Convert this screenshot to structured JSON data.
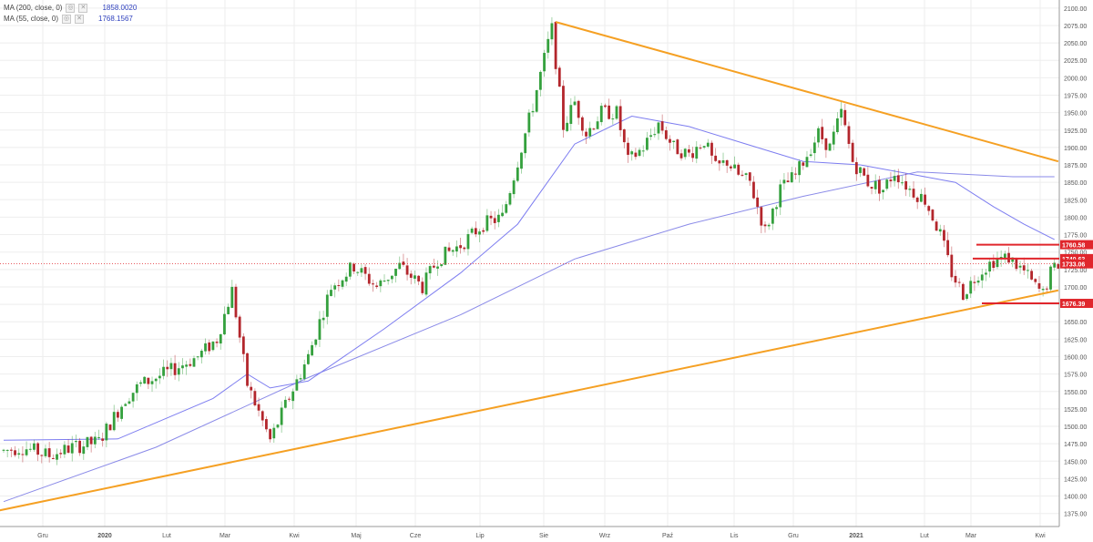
{
  "legend": [
    {
      "label": "MA (200, close, 0)",
      "value": "1858.0020"
    },
    {
      "label": "MA (55, close, 0)",
      "value": "1768.1567"
    }
  ],
  "price_tags": [
    {
      "text": "1760.58",
      "color": "#e0262c"
    },
    {
      "text": "1740.63",
      "color": "#e0262c"
    },
    {
      "text": "1733.06",
      "color": "#e0262c"
    },
    {
      "text": "1676.39",
      "color": "#e0262c"
    }
  ],
  "colors": {
    "bull": "#34a03d",
    "bear": "#b3262c",
    "ma55": "#7d7df0",
    "ma200": "#8a8ae8",
    "trend": "#f5a023",
    "level": "#e0262c",
    "grid": "#eeeeee"
  },
  "chart_data": {
    "type": "candlestick",
    "y_range": [
      1355,
      2105
    ],
    "y_ticks": [
      "1375.00",
      "1400.00",
      "1425.00",
      "1450.00",
      "1475.00",
      "1500.00",
      "1525.00",
      "1550.00",
      "1575.00",
      "1600.00",
      "1625.00",
      "1650.00",
      "1675.00",
      "1700.00",
      "1725.00",
      "1750.00",
      "1775.00",
      "1800.00",
      "1825.00",
      "1850.00",
      "1875.00",
      "1900.00",
      "1925.00",
      "1950.00",
      "1975.00",
      "2000.00",
      "2025.00",
      "2050.00",
      "2075.00",
      "2100.00"
    ],
    "x_ticks": [
      "Gru",
      "2020",
      "Lut",
      "Mar",
      "Kwi",
      "Maj",
      "Cze",
      "Lip",
      "Sie",
      "Wrz",
      "Paź",
      "Lis",
      "Gru",
      "2021",
      "Lut",
      "Mar",
      "Kwi"
    ],
    "levels": [
      1760.58,
      1740.63,
      1733.06,
      1676.39
    ],
    "last_price": 1733.06,
    "anchors": [
      [
        0,
        1465
      ],
      [
        5,
        1470
      ],
      [
        12,
        1458
      ],
      [
        18,
        1470
      ],
      [
        25,
        1478
      ],
      [
        32,
        1540
      ],
      [
        36,
        1560
      ],
      [
        44,
        1580
      ],
      [
        51,
        1600
      ],
      [
        56,
        1625
      ],
      [
        60,
        1695
      ],
      [
        64,
        1560
      ],
      [
        70,
        1480
      ],
      [
        74,
        1530
      ],
      [
        80,
        1600
      ],
      [
        86,
        1700
      ],
      [
        92,
        1730
      ],
      [
        98,
        1700
      ],
      [
        104,
        1730
      ],
      [
        110,
        1700
      ],
      [
        114,
        1740
      ],
      [
        120,
        1760
      ],
      [
        126,
        1790
      ],
      [
        131,
        1800
      ],
      [
        135,
        1880
      ],
      [
        139,
        1960
      ],
      [
        143,
        2050
      ],
      [
        144,
        2070
      ],
      [
        147,
        1930
      ],
      [
        150,
        1965
      ],
      [
        153,
        1920
      ],
      [
        157,
        1950
      ],
      [
        161,
        1950
      ],
      [
        164,
        1880
      ],
      [
        168,
        1900
      ],
      [
        172,
        1935
      ],
      [
        176,
        1900
      ],
      [
        180,
        1890
      ],
      [
        184,
        1910
      ],
      [
        187,
        1870
      ],
      [
        190,
        1880
      ],
      [
        193,
        1860
      ],
      [
        196,
        1850
      ],
      [
        200,
        1780
      ],
      [
        204,
        1840
      ],
      [
        208,
        1860
      ],
      [
        212,
        1900
      ],
      [
        214,
        1920
      ],
      [
        217,
        1900
      ],
      [
        220,
        1950
      ],
      [
        223,
        1880
      ],
      [
        227,
        1850
      ],
      [
        231,
        1840
      ],
      [
        234,
        1865
      ],
      [
        238,
        1840
      ],
      [
        242,
        1825
      ],
      [
        244,
        1800
      ],
      [
        246,
        1775
      ],
      [
        249,
        1720
      ],
      [
        252,
        1690
      ],
      [
        256,
        1720
      ],
      [
        260,
        1738
      ],
      [
        264,
        1742
      ],
      [
        268,
        1722
      ],
      [
        271,
        1700
      ],
      [
        273,
        1690
      ],
      [
        275,
        1720
      ],
      [
        277,
        1733
      ]
    ],
    "ma200": [
      [
        0,
        1392
      ],
      [
        40,
        1470
      ],
      [
        80,
        1570
      ],
      [
        120,
        1660
      ],
      [
        150,
        1740
      ],
      [
        180,
        1790
      ],
      [
        210,
        1830
      ],
      [
        240,
        1865
      ],
      [
        265,
        1858
      ],
      [
        276,
        1858
      ]
    ],
    "ma55": [
      [
        0,
        1480
      ],
      [
        30,
        1482
      ],
      [
        55,
        1540
      ],
      [
        64,
        1575
      ],
      [
        70,
        1555
      ],
      [
        80,
        1565
      ],
      [
        100,
        1640
      ],
      [
        120,
        1720
      ],
      [
        135,
        1790
      ],
      [
        150,
        1905
      ],
      [
        165,
        1945
      ],
      [
        180,
        1930
      ],
      [
        195,
        1905
      ],
      [
        210,
        1880
      ],
      [
        225,
        1875
      ],
      [
        240,
        1860
      ],
      [
        250,
        1850
      ],
      [
        260,
        1815
      ],
      [
        268,
        1790
      ],
      [
        276,
        1768
      ]
    ],
    "trendline_upper": [
      [
        145,
        2080
      ],
      [
        277,
        1880
      ]
    ],
    "trendline_lower": [
      [
        -5,
        1375
      ],
      [
        277,
        1695
      ]
    ]
  }
}
